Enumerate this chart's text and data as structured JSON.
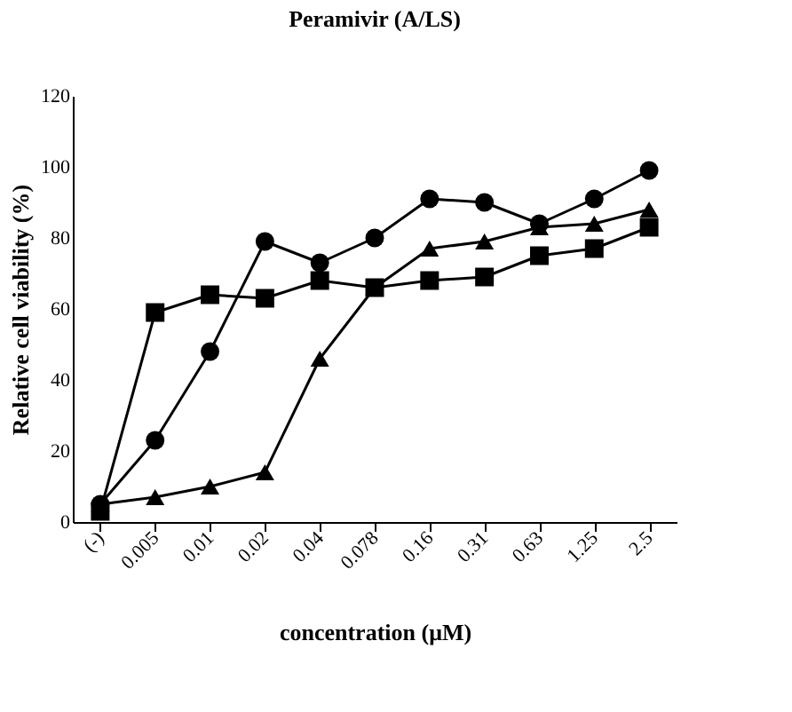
{
  "chart_data": {
    "type": "line",
    "title": "Peramivir (A/LS)",
    "xlabel": "concentration (μM)",
    "ylabel": "Relative cell viability (%)",
    "categories": [
      "(-)",
      "0.005",
      "0.01",
      "0.02",
      "0.04",
      "0.078",
      "0.16",
      "0.31",
      "0.63",
      "1.25",
      "2.5"
    ],
    "series": [
      {
        "color": "#000000",
        "marker": "circle",
        "values": [
          5,
          23,
          48,
          79,
          73,
          80,
          91,
          90,
          84,
          91,
          99
        ]
      },
      {
        "color": "#000000",
        "marker": "square",
        "values": [
          3,
          59,
          64,
          63,
          68,
          66,
          68,
          69,
          75,
          77,
          83
        ]
      },
      {
        "color": "#000000",
        "marker": "triangle",
        "values": [
          5,
          7,
          10,
          14,
          46,
          66,
          77,
          79,
          83,
          84,
          88
        ]
      }
    ],
    "ylim": [
      0,
      120
    ],
    "yticks": [
      0,
      20,
      40,
      60,
      80,
      100,
      120
    ],
    "grid": false,
    "line_style": "solid"
  }
}
